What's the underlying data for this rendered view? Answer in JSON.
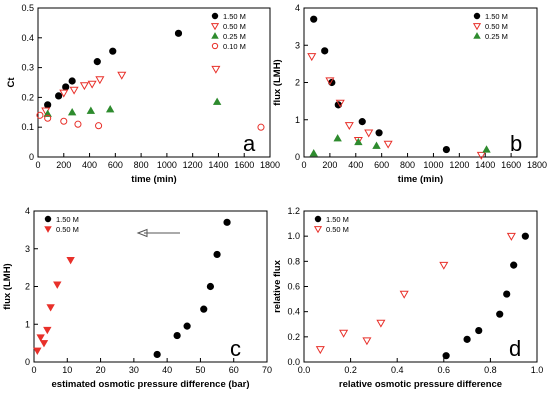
{
  "chart_data": [
    {
      "id": "a",
      "type": "scatter",
      "letter": "a",
      "xlabel": "time (min)",
      "ylabel": "Ct",
      "xlim": [
        0,
        1800
      ],
      "ylim": [
        0,
        0.5
      ],
      "xticks": [
        0,
        200,
        400,
        600,
        800,
        1000,
        1200,
        1400,
        1600,
        1800
      ],
      "yticks": [
        0,
        0.1,
        0.2,
        0.3,
        0.4,
        0.5
      ],
      "ytick_labels": [
        "0",
        "0.1",
        "0.2",
        "0.3",
        "0.4",
        "0.5"
      ],
      "legend_position": "top-right",
      "series": [
        {
          "name": "1.50 M",
          "marker": "filled-circle",
          "color": "#000000",
          "points": [
            [
              75,
              0.175
            ],
            [
              160,
              0.205
            ],
            [
              215,
              0.235
            ],
            [
              265,
              0.255
            ],
            [
              460,
              0.32
            ],
            [
              580,
              0.355
            ],
            [
              1090,
              0.415
            ]
          ]
        },
        {
          "name": "0.50 M",
          "marker": "open-triangle-down",
          "color": "#e8302a",
          "points": [
            [
              60,
              0.155
            ],
            [
              200,
              0.215
            ],
            [
              280,
              0.225
            ],
            [
              360,
              0.24
            ],
            [
              420,
              0.245
            ],
            [
              480,
              0.26
            ],
            [
              650,
              0.275
            ],
            [
              1380,
              0.295
            ]
          ]
        },
        {
          "name": "0.25 M",
          "marker": "filled-triangle-up",
          "color": "#2e8b2e",
          "points": [
            [
              75,
              0.145
            ],
            [
              265,
              0.15
            ],
            [
              410,
              0.155
            ],
            [
              560,
              0.16
            ],
            [
              1390,
              0.185
            ]
          ]
        },
        {
          "name": "0.10 M",
          "marker": "open-circle",
          "color": "#e8302a",
          "points": [
            [
              15,
              0.14
            ],
            [
              75,
              0.13
            ],
            [
              200,
              0.12
            ],
            [
              310,
              0.11
            ],
            [
              470,
              0.105
            ],
            [
              1730,
              0.1
            ]
          ]
        }
      ]
    },
    {
      "id": "b",
      "type": "scatter",
      "letter": "b",
      "xlabel": "time (min)",
      "ylabel": "flux (LMH)",
      "xlim": [
        0,
        1800
      ],
      "ylim": [
        0,
        4
      ],
      "xticks": [
        0,
        200,
        400,
        600,
        800,
        1000,
        1200,
        1400,
        1600,
        1800
      ],
      "yticks": [
        0,
        1,
        2,
        3,
        4
      ],
      "ytick_labels": [
        "0",
        "1",
        "2",
        "3",
        "4"
      ],
      "legend_position": "top-right",
      "series": [
        {
          "name": "1.50 M",
          "marker": "filled-circle",
          "color": "#000000",
          "points": [
            [
              75,
              3.7
            ],
            [
              160,
              2.85
            ],
            [
              215,
              2.0
            ],
            [
              265,
              1.4
            ],
            [
              450,
              0.95
            ],
            [
              580,
              0.65
            ],
            [
              1100,
              0.2
            ]
          ]
        },
        {
          "name": "0.50 M",
          "marker": "open-triangle-down",
          "color": "#e8302a",
          "points": [
            [
              60,
              2.7
            ],
            [
              200,
              2.05
            ],
            [
              280,
              1.45
            ],
            [
              350,
              0.85
            ],
            [
              420,
              0.45
            ],
            [
              500,
              0.65
            ],
            [
              650,
              0.35
            ],
            [
              1370,
              0.05
            ]
          ]
        },
        {
          "name": "0.25 M",
          "marker": "filled-triangle-up",
          "color": "#2e8b2e",
          "points": [
            [
              75,
              0.1
            ],
            [
              260,
              0.5
            ],
            [
              420,
              0.4
            ],
            [
              560,
              0.3
            ],
            [
              1410,
              0.2
            ]
          ]
        }
      ]
    },
    {
      "id": "c",
      "type": "scatter",
      "letter": "c",
      "xlabel": "estimated osmotic pressure difference (bar)",
      "ylabel": "flux (LMH)",
      "xlim": [
        0,
        70
      ],
      "ylim": [
        0,
        4
      ],
      "xticks": [
        0,
        10,
        20,
        30,
        40,
        50,
        60,
        70
      ],
      "yticks": [
        0,
        1,
        2,
        3,
        4
      ],
      "ytick_labels": [
        "0",
        "1",
        "2",
        "3",
        "4"
      ],
      "legend_position": "top-left",
      "arrow_annotation": "left-pointing arrow",
      "series": [
        {
          "name": "1.50 M",
          "marker": "filled-circle",
          "color": "#000000",
          "points": [
            [
              37,
              0.2
            ],
            [
              43,
              0.7
            ],
            [
              46,
              0.95
            ],
            [
              51,
              1.4
            ],
            [
              53,
              2.0
            ],
            [
              55,
              2.85
            ],
            [
              58,
              3.7
            ]
          ]
        },
        {
          "name": "0.50 M",
          "marker": "filled-triangle-down",
          "color": "#e8302a",
          "points": [
            [
              1,
              0.3
            ],
            [
              2,
              0.65
            ],
            [
              3,
              0.5
            ],
            [
              4,
              0.85
            ],
            [
              5,
              1.45
            ],
            [
              7,
              2.05
            ],
            [
              11,
              2.7
            ]
          ]
        }
      ]
    },
    {
      "id": "d",
      "type": "scatter",
      "letter": "d",
      "xlabel": "relative osmotic pressure difference",
      "ylabel": "relative flux",
      "xlim": [
        0,
        1
      ],
      "ylim": [
        0,
        1.2
      ],
      "xticks": [
        0,
        0.2,
        0.4,
        0.6,
        0.8,
        1.0
      ],
      "xtick_labels": [
        "0.0",
        "0.2",
        "0.4",
        "0.6",
        "0.8",
        "1.0"
      ],
      "yticks": [
        0,
        0.2,
        0.4,
        0.6,
        0.8,
        1.0,
        1.2
      ],
      "ytick_labels": [
        "0.0",
        "0.2",
        "0.4",
        "0.6",
        "0.8",
        "1.0",
        "1.2"
      ],
      "legend_position": "top-left",
      "series": [
        {
          "name": "1.50 M",
          "marker": "filled-circle",
          "color": "#000000",
          "points": [
            [
              0.61,
              0.05
            ],
            [
              0.7,
              0.18
            ],
            [
              0.75,
              0.25
            ],
            [
              0.84,
              0.38
            ],
            [
              0.87,
              0.54
            ],
            [
              0.9,
              0.77
            ],
            [
              0.95,
              1.0
            ]
          ]
        },
        {
          "name": "0.50 M",
          "marker": "open-triangle-down",
          "color": "#e8302a",
          "points": [
            [
              0.07,
              0.1
            ],
            [
              0.17,
              0.23
            ],
            [
              0.27,
              0.17
            ],
            [
              0.33,
              0.31
            ],
            [
              0.43,
              0.54
            ],
            [
              0.6,
              0.77
            ],
            [
              0.89,
              1.0
            ]
          ]
        }
      ]
    }
  ]
}
